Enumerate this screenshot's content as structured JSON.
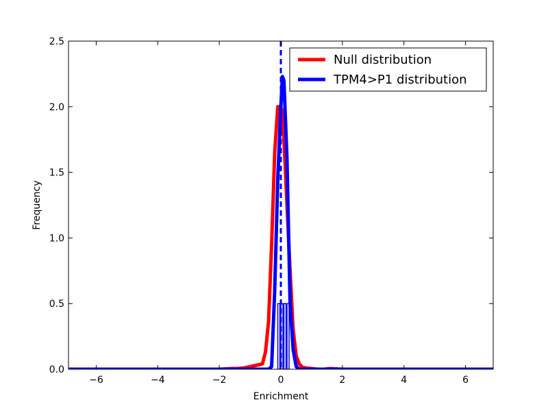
{
  "chart_data": {
    "type": "line",
    "title": "",
    "xlabel": "Enrichment",
    "ylabel": "Frequency",
    "xlim": [
      -6.9,
      6.9
    ],
    "ylim": [
      0.0,
      2.5
    ],
    "xticks": [
      -6,
      -4,
      -2,
      0,
      2,
      4,
      6
    ],
    "yticks": [
      0.0,
      0.5,
      1.0,
      1.5,
      2.0,
      2.5
    ],
    "xtick_labels": [
      "−6",
      "−4",
      "−2",
      "0",
      "2",
      "4",
      "6"
    ],
    "ytick_labels": [
      "0.0",
      "0.5",
      "1.0",
      "1.5",
      "2.0",
      "2.5"
    ],
    "grid": false,
    "legend_position": "top-right",
    "colors": {
      "null": "#ff0000",
      "observed": "#0000ff"
    },
    "series": [
      {
        "name": "Null distribution",
        "color": "#ff0000",
        "x": [
          -6.9,
          -2.0,
          -1.6,
          -1.4,
          -1.2,
          -1.0,
          -0.8,
          -0.6,
          -0.5,
          -0.4,
          -0.3,
          -0.2,
          -0.1,
          0.0,
          0.05,
          0.1,
          0.2,
          0.3,
          0.4,
          0.5,
          0.6,
          0.7,
          0.8,
          1.0,
          1.2,
          1.4,
          1.6,
          2.0,
          6.9
        ],
        "y": [
          0.0,
          0.0,
          0.005,
          0.005,
          0.01,
          0.02,
          0.03,
          0.04,
          0.13,
          0.36,
          0.95,
          1.65,
          2.0,
          2.0,
          1.95,
          1.75,
          1.25,
          0.75,
          0.3,
          0.1,
          0.04,
          0.015,
          0.01,
          0.005,
          0.0,
          0.0,
          0.005,
          0.0,
          0.0
        ]
      },
      {
        "name": "TPM4>P1 distribution",
        "color": "#0000ff",
        "x": [
          -6.9,
          -0.4,
          -0.3,
          -0.2,
          -0.1,
          0.0,
          0.05,
          0.1,
          0.2,
          0.3,
          0.4,
          0.5,
          0.6,
          6.9
        ],
        "y": [
          0.0,
          0.0,
          0.02,
          0.6,
          1.45,
          2.0,
          2.23,
          2.2,
          1.6,
          0.5,
          0.15,
          0.02,
          0.0,
          0.0
        ]
      }
    ],
    "reference_line": {
      "x": 0.0,
      "style": "dashed",
      "color": "#0000ff"
    },
    "histogram_bars": {
      "color": "#0000ff",
      "x": [
        -0.1,
        0.0,
        0.1,
        0.2
      ],
      "height": 0.5
    }
  }
}
